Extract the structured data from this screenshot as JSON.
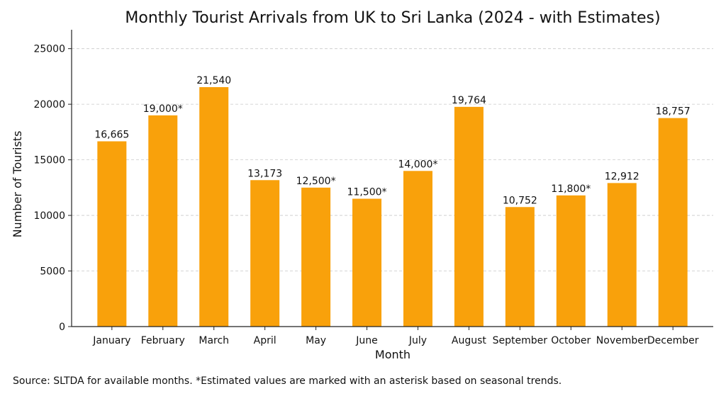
{
  "chart_data": {
    "type": "bar",
    "title": "Monthly Tourist Arrivals from UK to Sri Lanka (2024 - with Estimates)",
    "xlabel": "Month",
    "ylabel": "Number of Tourists",
    "categories": [
      "January",
      "February",
      "March",
      "April",
      "May",
      "June",
      "July",
      "August",
      "September",
      "October",
      "November",
      "December"
    ],
    "values": [
      16665,
      19000,
      21540,
      13173,
      12500,
      11500,
      14000,
      19764,
      10752,
      11800,
      12912,
      18757
    ],
    "data_labels": [
      "16,665",
      "19,000*",
      "21,540",
      "13,173",
      "12,500*",
      "11,500*",
      "14,000*",
      "19,764",
      "10,752",
      "11,800*",
      "12,912",
      "18,757"
    ],
    "ylim": [
      0,
      26700
    ],
    "yticks": [
      0,
      5000,
      10000,
      15000,
      20000,
      25000
    ],
    "ytick_labels": [
      "0",
      "5000",
      "10000",
      "15000",
      "20000",
      "25000"
    ],
    "grid": "horizontal dashed",
    "bar_color": "#F9A10B",
    "footnote": "Source: SLTDA for available months. *Estimated values are marked with an asterisk based on seasonal trends."
  }
}
